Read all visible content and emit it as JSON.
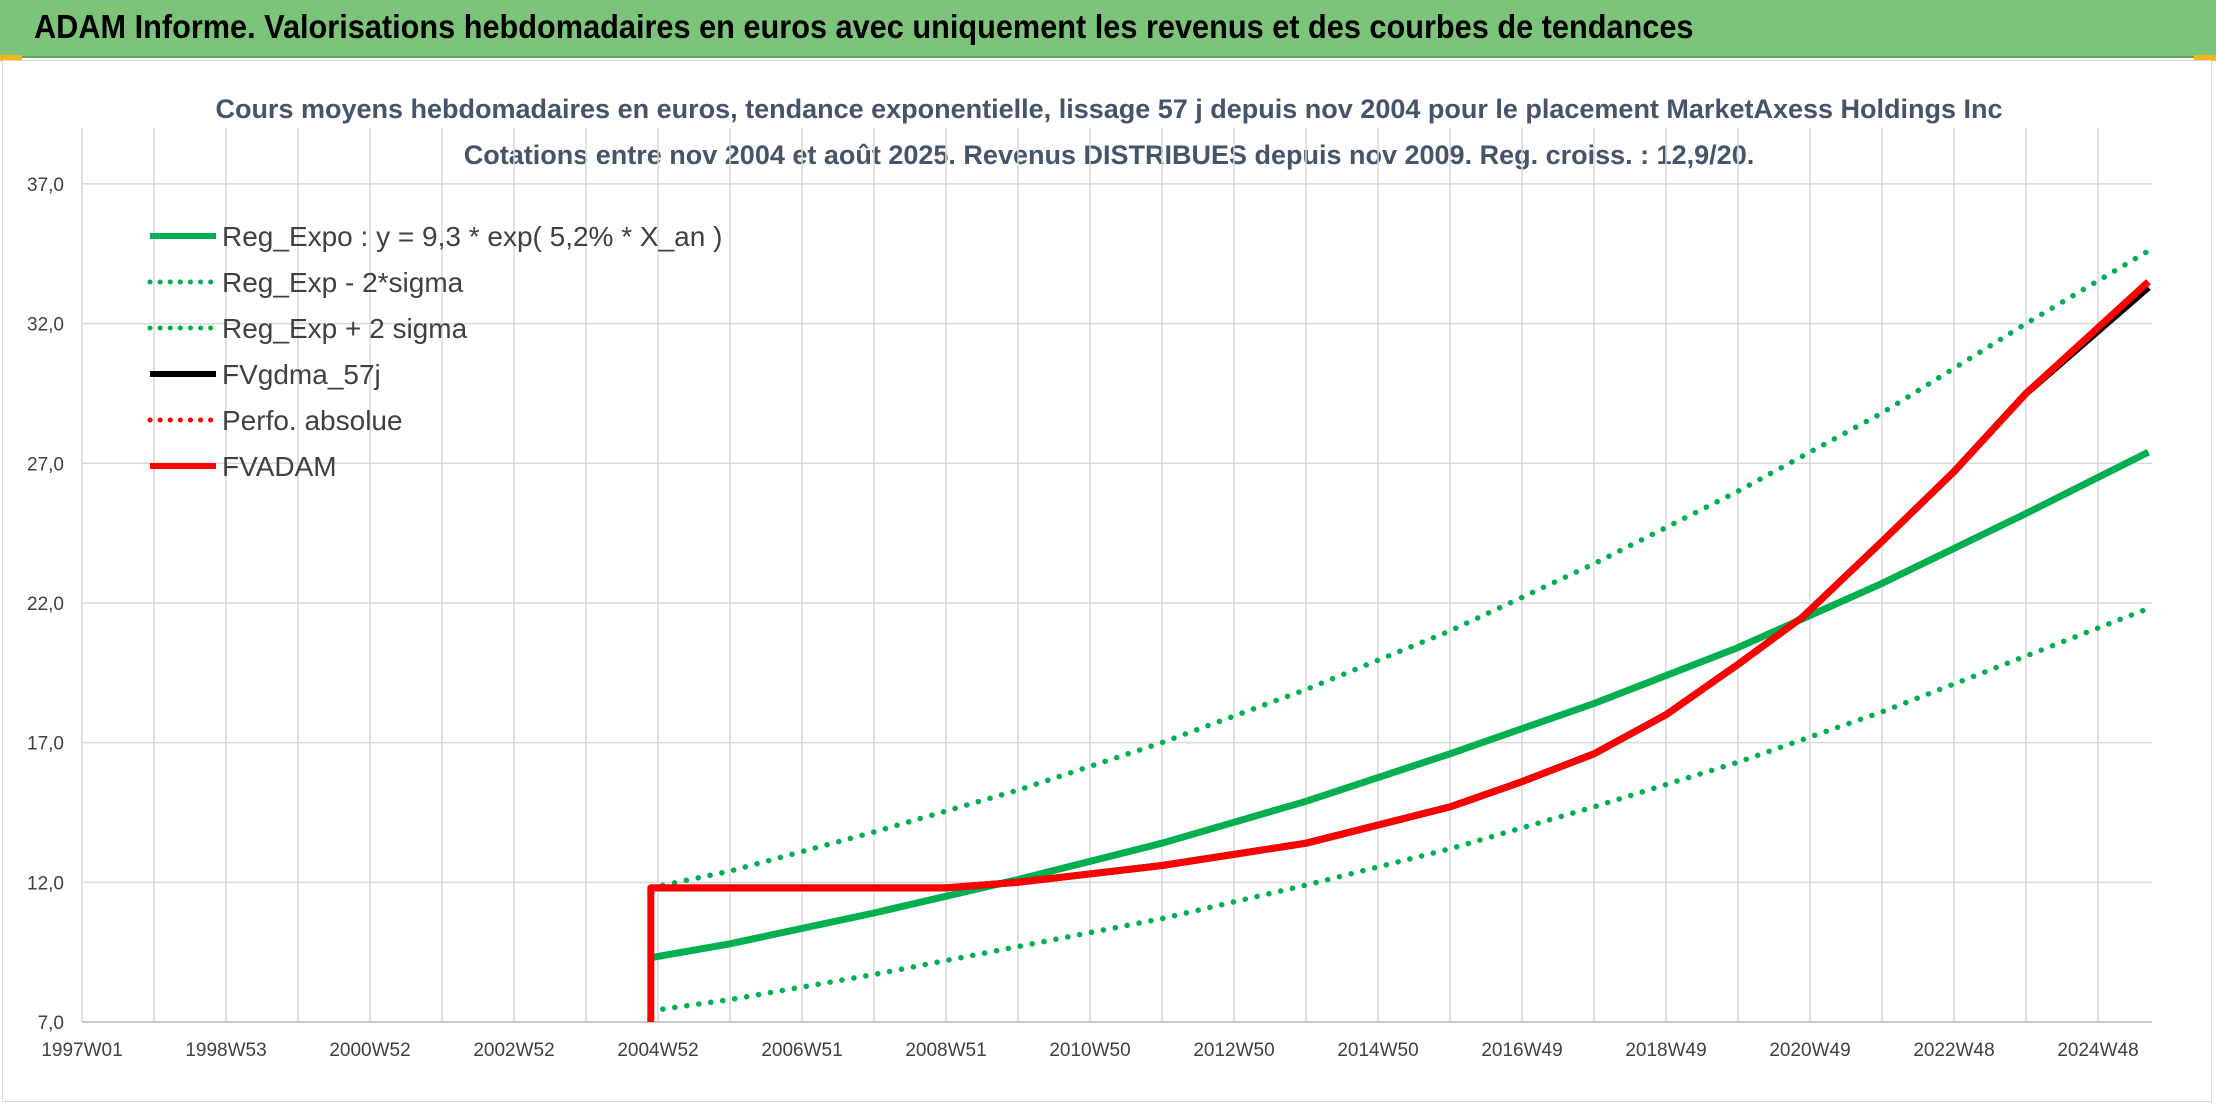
{
  "header": {
    "banner_title": "ADAM Informe. Valorisations hebdomadaires en euros avec uniquement les revenus et des courbes de tendances"
  },
  "chart_data": {
    "type": "line",
    "title": "Cours moyens hebdomadaires en euros, tendance exponentielle, lissage 57 j depuis nov 2004 pour le placement MarketAxess Holdings Inc",
    "subtitle": "Cotations entre nov 2004 et août 2025. Revenus DISTRIBUES depuis nov 2009. Reg. croiss. : 12,9/20.",
    "xlabel": "",
    "ylabel": "",
    "x_ticks": [
      "1997W01",
      "1998W53",
      "2000W52",
      "2002W52",
      "2004W52",
      "2006W51",
      "2008W51",
      "2010W50",
      "2012W50",
      "2014W50",
      "2016W49",
      "2018W49",
      "2020W49",
      "2022W48",
      "2024W48"
    ],
    "x_range": [
      1997.0,
      2025.8
    ],
    "y_ticks": [
      "7,0",
      "12,0",
      "17,0",
      "22,0",
      "27,0",
      "32,0",
      "37,0"
    ],
    "ylim": [
      7,
      39
    ],
    "grid": true,
    "legend_position": "top-left",
    "series": [
      {
        "name": "Reg_Expo : y = 9,3 * exp( 5,2% *  X_an )",
        "color": "#00b050",
        "style": "solid",
        "x": [
          2004.9,
          2006,
          2008,
          2010,
          2012,
          2014,
          2016,
          2018,
          2020,
          2022,
          2024,
          2025.7
        ],
        "y": [
          9.3,
          9.8,
          10.9,
          12.1,
          13.4,
          14.9,
          16.6,
          18.4,
          20.4,
          22.7,
          25.2,
          27.4
        ]
      },
      {
        "name": "Reg_Exp - 2*sigma",
        "color": "#00b050",
        "style": "dotted",
        "x": [
          2004.9,
          2006,
          2008,
          2010,
          2012,
          2014,
          2016,
          2018,
          2020,
          2022,
          2024,
          2025.7
        ],
        "y": [
          7.4,
          7.8,
          8.7,
          9.7,
          10.7,
          11.9,
          13.2,
          14.7,
          16.3,
          18.1,
          20.1,
          21.8
        ]
      },
      {
        "name": "Reg_Exp + 2 sigma",
        "color": "#00b050",
        "style": "dotted",
        "x": [
          2004.9,
          2006,
          2008,
          2010,
          2012,
          2014,
          2016,
          2018,
          2020,
          2022,
          2024,
          2025.7
        ],
        "y": [
          11.8,
          12.4,
          13.8,
          15.3,
          17.0,
          18.9,
          21.0,
          23.4,
          26.0,
          28.8,
          32.0,
          34.6
        ]
      },
      {
        "name": "FVgdma_57j",
        "color": "#000000",
        "style": "solid",
        "x": [
          2004.9,
          2009.0,
          2010.0,
          2012.0,
          2014.0,
          2016.0,
          2017.0,
          2018.0,
          2019.0,
          2020.0,
          2020.9,
          2022.0,
          2023.0,
          2024.0,
          2025.7
        ],
        "y": [
          11.8,
          11.8,
          12.0,
          12.6,
          13.4,
          14.7,
          15.6,
          16.6,
          18.0,
          19.8,
          21.5,
          24.2,
          26.7,
          29.5,
          33.3
        ]
      },
      {
        "name": "Perfo. absolue",
        "color": "#ff0000",
        "style": "dotted",
        "x": [],
        "y": []
      },
      {
        "name": "FVADAM",
        "color": "#ff0000",
        "style": "solid",
        "x": [
          2004.9,
          2004.9,
          2009.0,
          2010.0,
          2012.0,
          2014.0,
          2016.0,
          2017.0,
          2018.0,
          2019.0,
          2020.0,
          2020.9,
          2022.0,
          2023.0,
          2024.0,
          2025.7
        ],
        "y": [
          7.0,
          11.8,
          11.8,
          12.0,
          12.6,
          13.4,
          14.7,
          15.6,
          16.6,
          18.0,
          19.8,
          21.5,
          24.2,
          26.7,
          29.5,
          33.5
        ]
      }
    ]
  }
}
